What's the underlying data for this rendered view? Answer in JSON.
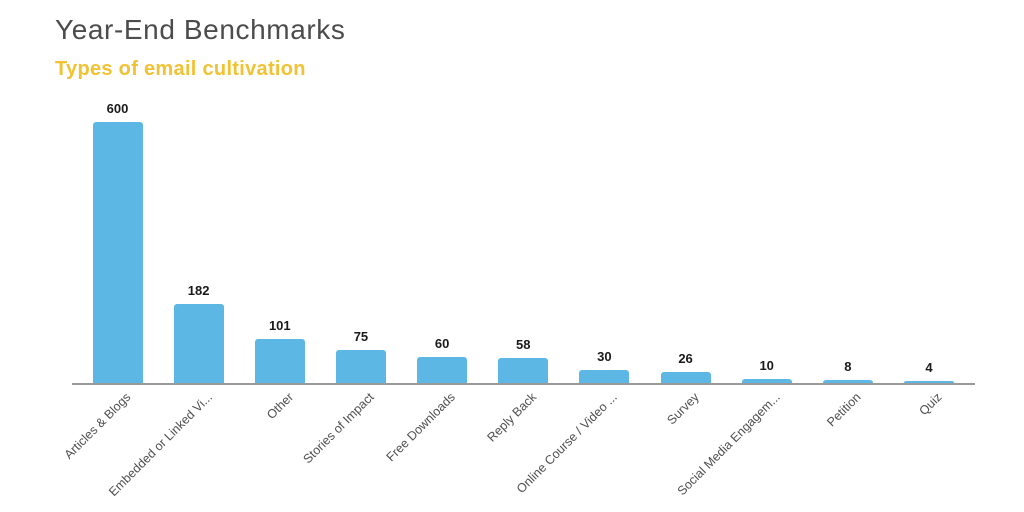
{
  "header": {
    "title": "Year-End Benchmarks",
    "subtitle": "Types of email cultivation"
  },
  "colors": {
    "background": "#ffffff",
    "title": "#4c4c4c",
    "subtitle": "#f1c232",
    "bar": "#5cb7e5",
    "axis": "#9a9a9a",
    "value_label": "#1a1a1a",
    "category_label": "#4f4f4f"
  },
  "chart_data": {
    "type": "bar",
    "orientation": "vertical",
    "title": "Year-End Benchmarks",
    "subtitle": "Types of email cultivation",
    "categories": [
      "Articles & Blogs",
      "Embedded or Linked Vi...",
      "Other",
      "Stories of Impact",
      "Free Downloads",
      "Reply Back",
      "Online Course / Video ...",
      "Survey",
      "Social Media Engagem...",
      "Petition",
      "Quiz"
    ],
    "values": [
      600,
      182,
      101,
      75,
      60,
      58,
      30,
      26,
      10,
      8,
      4
    ],
    "value_labels_shown": true,
    "xlabel": "",
    "ylabel": "",
    "ylim": [
      0,
      600
    ],
    "grid": false,
    "legend": "none",
    "category_label_rotation_deg": -45,
    "bar_color": "#5cb7e5"
  }
}
